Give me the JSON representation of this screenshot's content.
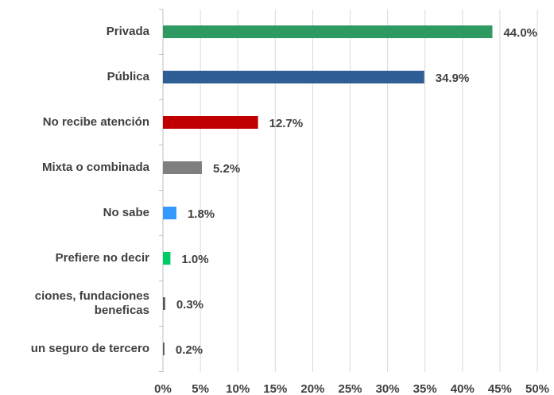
{
  "chart_data": {
    "type": "barh",
    "categories": [
      "Privada",
      "Pública",
      "No recibe atención",
      "Mixta o combinada",
      "No sabe",
      "Prefiere no decir",
      "ciones, fundaciones\nbeneficas",
      "un seguro de tercero"
    ],
    "values": [
      44.0,
      34.9,
      12.7,
      5.2,
      1.8,
      1.0,
      0.3,
      0.2
    ],
    "value_labels": [
      "44.0%",
      "34.9%",
      "12.7%",
      "5.2%",
      "1.8%",
      "1.0%",
      "0.3%",
      "0.2%"
    ],
    "colors": [
      "#2e9a62",
      "#2f5e96",
      "#c00000",
      "#7f7f7f",
      "#3399ff",
      "#00cc66",
      "#595959",
      "#595959"
    ],
    "xlim": [
      0,
      50
    ],
    "xticks": [
      {
        "value": 0,
        "label": "0%"
      },
      {
        "value": 5,
        "label": "5%"
      },
      {
        "value": 10,
        "label": "10%"
      },
      {
        "value": 15,
        "label": "15%"
      },
      {
        "value": 20,
        "label": "20%"
      },
      {
        "value": 25,
        "label": "25%"
      },
      {
        "value": 30,
        "label": "30%"
      },
      {
        "value": 35,
        "label": "35%"
      },
      {
        "value": 40,
        "label": "40%"
      },
      {
        "value": 45,
        "label": "45%"
      },
      {
        "value": 50,
        "label": "50%"
      }
    ],
    "grid": true
  }
}
